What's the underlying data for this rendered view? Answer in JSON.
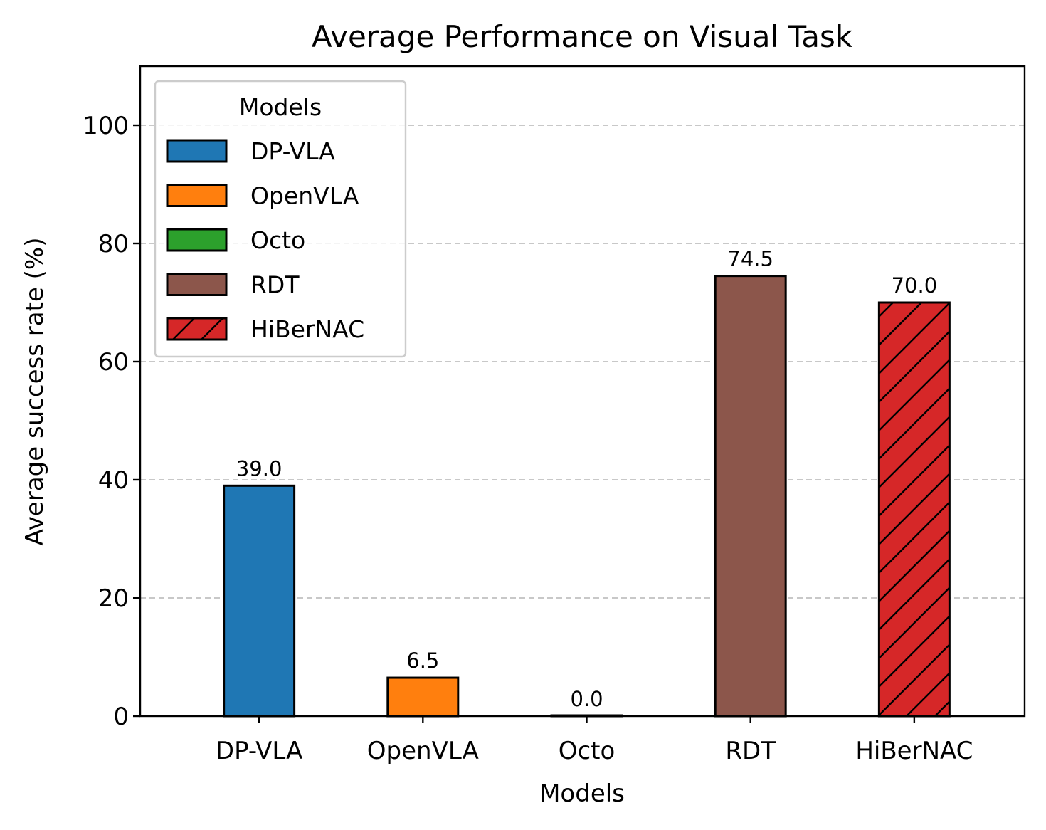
{
  "chart_data": {
    "type": "bar",
    "title": "Average Performance on Visual Task",
    "xlabel": "Models",
    "ylabel": "Average success rate (%)",
    "ylim": [
      0,
      110
    ],
    "yticks": [
      0,
      20,
      40,
      60,
      80,
      100
    ],
    "grid": "y-dashed",
    "categories": [
      "DP-VLA",
      "OpenVLA",
      "Octo",
      "RDT",
      "HiBerNAC"
    ],
    "values": [
      39.0,
      6.5,
      0.0,
      74.5,
      70.0
    ],
    "value_labels": [
      "39.0",
      "6.5",
      "0.0",
      "74.5",
      "70.0"
    ],
    "colors": [
      "#1f77b4",
      "#ff7f0e",
      "#2ca02c",
      "#8c564b",
      "#d62728"
    ],
    "hatch": [
      false,
      false,
      false,
      false,
      true
    ],
    "legend": {
      "title": "Models",
      "placement": "upper-left",
      "entries": [
        "DP-VLA",
        "OpenVLA",
        "Octo",
        "RDT",
        "HiBerNAC"
      ]
    }
  }
}
